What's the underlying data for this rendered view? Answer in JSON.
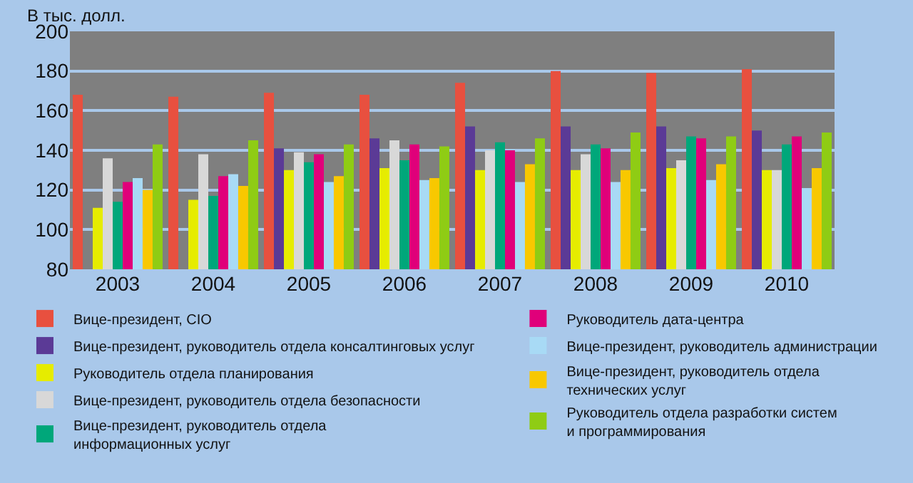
{
  "chart_data": {
    "type": "bar",
    "ylabel": "В тыс. долл.",
    "categories": [
      "2003",
      "2004",
      "2005",
      "2006",
      "2007",
      "2008",
      "2009",
      "2010"
    ],
    "ylim": [
      80,
      200
    ],
    "yticks": [
      80,
      100,
      120,
      140,
      160,
      180,
      200
    ],
    "grid": "y",
    "legend": "bottom",
    "series": [
      {
        "name": "Вице-президент, CIO",
        "color": "#e8503f",
        "values": [
          168,
          167,
          169,
          168,
          174,
          180,
          179,
          181
        ]
      },
      {
        "name": "Вице-президент, руководитель отдела консалтинговых услуг",
        "color": "#5b3a96",
        "values": [
          null,
          null,
          141,
          146,
          152,
          152,
          152,
          150
        ]
      },
      {
        "name": "Руководитель отдела планирования",
        "color": "#e6ec00",
        "values": [
          111,
          115,
          130,
          131,
          130,
          130,
          131,
          130
        ]
      },
      {
        "name": "Вице-президент, руководитель отдела безопасности",
        "color": "#d8d8d8",
        "values": [
          136,
          138,
          139,
          145,
          140,
          138,
          135,
          130
        ]
      },
      {
        "name": "Вице-президент, руководитель отдела\nинформационных услуг",
        "color": "#00a77a",
        "values": [
          114,
          117,
          134,
          135,
          144,
          143,
          147,
          143
        ]
      },
      {
        "name": "Руководитель дата-центра",
        "color": "#e0007a",
        "values": [
          124,
          127,
          138,
          143,
          140,
          141,
          146,
          147
        ]
      },
      {
        "name": "Вице-президент, руководитель администрации",
        "color": "#a8daf5",
        "values": [
          126,
          128,
          124,
          125,
          124,
          124,
          125,
          121
        ]
      },
      {
        "name": "Вице-президент, руководитель отдела\nтехнических услуг",
        "color": "#f8c800",
        "values": [
          120,
          122,
          127,
          126,
          133,
          130,
          133,
          131
        ]
      },
      {
        "name": "Руководитель отдела разработки систем\nи программирования",
        "color": "#8fcc14",
        "values": [
          143,
          145,
          143,
          142,
          146,
          149,
          147,
          149
        ]
      }
    ]
  }
}
